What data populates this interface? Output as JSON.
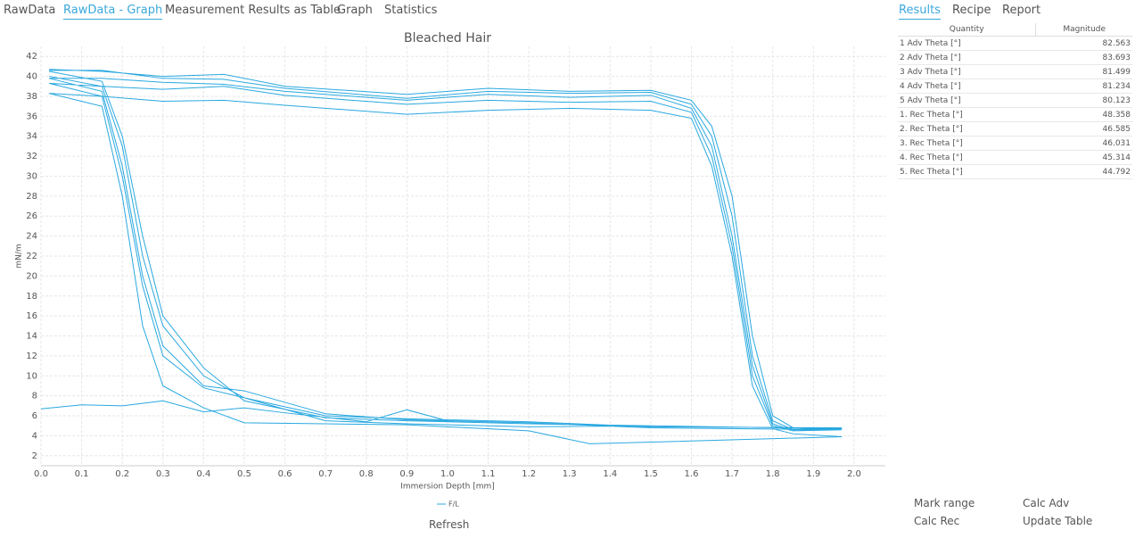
{
  "tabs": [
    "RawData",
    "RawData - Graph",
    "Measurement Results as Table",
    "Graph",
    "Statistics"
  ],
  "panel_tabs": [
    "Results",
    "Recipe",
    "Report"
  ],
  "table": {
    "header": [
      "Quantity",
      "Magnitude"
    ],
    "rows": [
      [
        "1 Adv Theta [°]",
        "82.563"
      ],
      [
        "2 Adv Theta [°]",
        "83.693"
      ],
      [
        "3 Adv Theta [°]",
        "81.499"
      ],
      [
        "4 Adv Theta [°]",
        "81.234"
      ],
      [
        "5 Adv Theta [°]",
        "80.123"
      ],
      [
        "1. Rec Theta [°]",
        "48.358"
      ],
      [
        "2. Rec Theta [°]",
        "46.585"
      ],
      [
        "3. Rec Theta [°]",
        "46.031"
      ],
      [
        "4. Rec Theta [°]",
        "45.314"
      ],
      [
        "5. Rec Theta [°]",
        "44.792"
      ]
    ]
  },
  "buttons": [
    "Mark range",
    "Calc Adv",
    "Calc Rec",
    "Update Table",
    "Refresh"
  ],
  "chart_data": {
    "type": "line",
    "title": "Bleached Hair",
    "x_label": "Immersion Depth [mm]",
    "y_label": "mN/m",
    "grid": true,
    "xlim": [
      0,
      2.077
    ],
    "ylim": [
      1,
      43
    ],
    "xticks": [
      {
        "value": 0,
        "label": "0.0"
      },
      0.1,
      0.2,
      0.3,
      0.4,
      0.5,
      0.6,
      0.7,
      0.8,
      0.9,
      {
        "value": 1,
        "label": "1.0"
      },
      1.1,
      1.2,
      1.3,
      1.4,
      1.5,
      1.6,
      1.7,
      1.8,
      1.9,
      {
        "value": 2,
        "label": "2.0"
      }
    ],
    "yticks": [
      2,
      4,
      6,
      8,
      10,
      12,
      14,
      16,
      18,
      20,
      22,
      24,
      26,
      28,
      30,
      32,
      34,
      36,
      38,
      40,
      42
    ],
    "series": [
      {
        "name": "F/L",
        "color": "#29a8e0",
        "x": [
          0,
          0.1,
          0.2,
          0.3,
          0.4,
          0.5,
          0.6,
          0.8,
          0.9,
          1.0,
          null,
          0.02,
          0.15,
          0.3,
          0.45,
          0.6,
          0.9,
          1.1,
          1.3,
          1.5,
          1.6,
          1.65,
          1.7,
          1.75,
          1.8,
          1.85,
          1.97,
          1.5,
          1.2,
          0.9,
          0.7,
          0.5,
          0.4,
          0.3,
          0.25,
          0.2,
          0.15,
          0.02,
          null,
          0.02,
          0.15,
          0.3,
          0.45,
          0.6,
          0.9,
          1.1,
          1.3,
          1.5,
          1.6,
          1.65,
          1.7,
          1.75,
          1.8,
          1.85,
          1.97,
          1.5,
          1.2,
          0.9,
          0.7,
          0.5,
          0.4,
          0.3,
          0.25,
          0.2,
          0.15,
          0.02,
          null,
          0.02,
          0.15,
          0.3,
          0.45,
          0.6,
          0.9,
          1.1,
          1.3,
          1.5,
          1.6,
          1.65,
          1.7,
          1.75,
          1.8,
          1.85,
          1.97,
          1.5,
          1.2,
          0.9,
          0.7,
          0.5,
          0.4,
          0.3,
          0.25,
          0.2,
          0.15,
          0.02,
          null,
          0.02,
          0.15,
          0.3,
          0.45,
          0.6,
          0.9,
          1.1,
          1.3,
          1.5,
          1.6,
          1.65,
          1.7,
          1.75,
          1.8,
          1.85,
          1.97,
          1.5,
          1.2,
          0.9,
          0.7,
          0.5,
          0.4,
          0.3,
          0.25,
          0.2,
          0.15,
          0.02,
          null,
          0.02,
          0.15,
          0.3,
          0.45,
          0.6,
          0.9,
          1.1,
          1.3,
          1.5,
          1.6,
          1.65,
          1.7,
          1.75,
          1.8,
          1.85,
          1.97,
          1.35,
          1.2,
          0.9,
          0.7,
          0.5,
          0.4,
          0.3,
          0.25,
          0.2,
          0.15,
          0.02
        ],
        "values": [
          6.7,
          7.1,
          7,
          7.5,
          6.4,
          6.8,
          6.3,
          5.4,
          6.6,
          5.5,
          null,
          40.7,
          40.5,
          40,
          40.2,
          39,
          38.2,
          38.8,
          38.5,
          38.6,
          37.6,
          35,
          28,
          14,
          6,
          4.8,
          4.7,
          5,
          5.2,
          5.5,
          5.8,
          7.5,
          10.8,
          16,
          24,
          34,
          39.5,
          40.5,
          null,
          40.6,
          40.6,
          39.8,
          39.7,
          38.8,
          37.8,
          38.5,
          38.3,
          38.4,
          37.2,
          34,
          26,
          12,
          5.5,
          4.6,
          4.8,
          4.9,
          5.4,
          5.7,
          6,
          7.8,
          10,
          15,
          22,
          33,
          39,
          40,
          null,
          39.8,
          39.8,
          39.4,
          39.2,
          38.5,
          37.6,
          38.2,
          37.9,
          38.1,
          36.8,
          33,
          24,
          11,
          5.2,
          4.5,
          4.6,
          4.8,
          5.3,
          5.6,
          6.2,
          8.5,
          9,
          13,
          20,
          31,
          38.5,
          39.8,
          null,
          39.3,
          39,
          38.7,
          39,
          38.1,
          37.2,
          37.6,
          37.4,
          37.5,
          36.4,
          32,
          23,
          10,
          5,
          4.5,
          4.7,
          5,
          4.9,
          5.2,
          5.5,
          7.8,
          8.8,
          12,
          19,
          30,
          38,
          39.3,
          null,
          38.3,
          38,
          37.5,
          37.6,
          37.1,
          36.2,
          36.6,
          36.8,
          36.6,
          35.8,
          31,
          22,
          9,
          4.7,
          4.2,
          3.9,
          3.2,
          4.5,
          5.1,
          5.2,
          5.3,
          6.8,
          9,
          15,
          28,
          37,
          38.3
        ]
      }
    ]
  }
}
